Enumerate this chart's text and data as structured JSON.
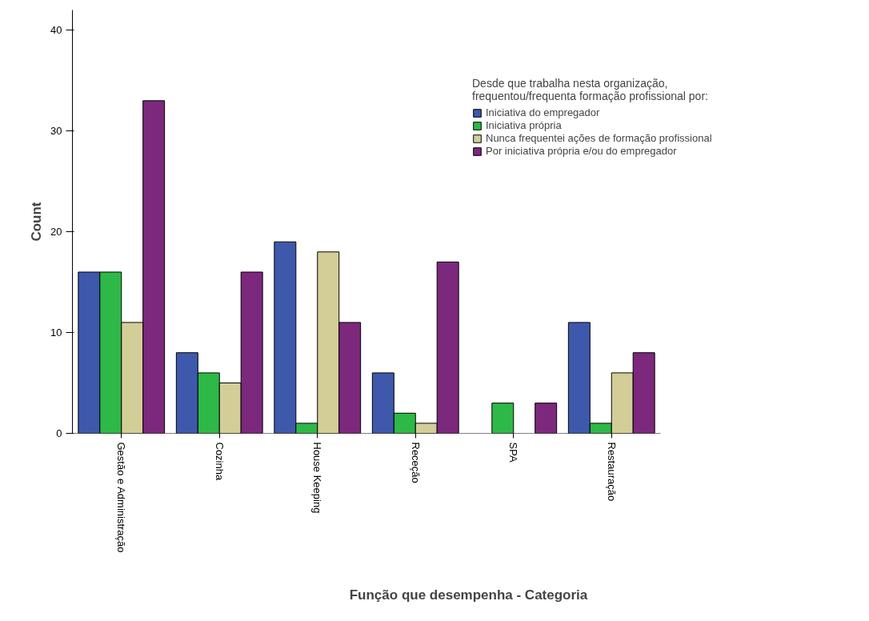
{
  "chart_data": {
    "type": "bar",
    "xlabel": "Função que desempenha - Categoria",
    "ylabel": "Count",
    "legend_title": "Desde que trabalha nesta organização, frequentou/frequenta formação profissional por:",
    "categories": [
      "Gestão e Administração",
      "Cozinha",
      "House Keeping",
      "Receção",
      "SPA",
      "Restauração"
    ],
    "series": [
      {
        "name": "Iniciativa do empregador",
        "color": "#3e58ac",
        "values": [
          16,
          8,
          19,
          6,
          null,
          11
        ]
      },
      {
        "name": "Iniciativa própria",
        "color": "#2eb848",
        "values": [
          16,
          6,
          1,
          2,
          3,
          1
        ]
      },
      {
        "name": "Nunca frequentei ações de formação profissional",
        "color": "#d3ce97",
        "values": [
          11,
          5,
          18,
          1,
          null,
          6
        ]
      },
      {
        "name": "Por iniciativa própria e/ou do empregador",
        "color": "#7c287d",
        "values": [
          33,
          16,
          11,
          17,
          3,
          8
        ]
      }
    ],
    "ylim": [
      0,
      42
    ],
    "yticks": [
      0,
      10,
      20,
      30,
      40
    ],
    "grid": false,
    "legend": "top right"
  }
}
